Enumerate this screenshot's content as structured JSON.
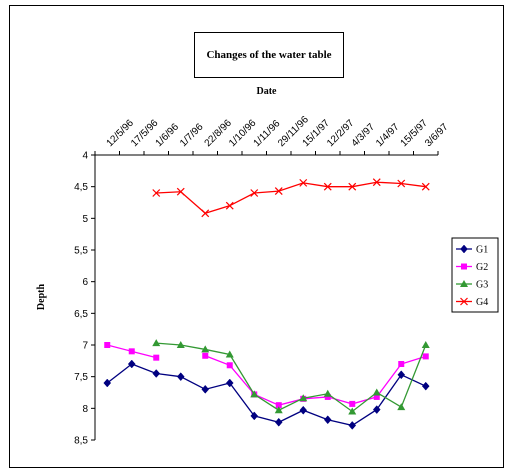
{
  "chart_data": {
    "type": "line",
    "title": "Changes of the water table",
    "xlabel": "Date",
    "ylabel": "Depth",
    "categories": [
      "12/5/96",
      "17/5/96",
      "1/6/96",
      "1/7/96",
      "22/8/96",
      "1/10/96",
      "1/11/96",
      "29/11/96",
      "15/1/97",
      "12/2/97",
      "4/3/97",
      "1/4/97",
      "15/5/97",
      "3/6/97"
    ],
    "yticks": [
      "4",
      "4,5",
      "5",
      "5,5",
      "6",
      "6,5",
      "7",
      "7,5",
      "8",
      "8,5"
    ],
    "ylim": [
      4,
      8.5
    ],
    "y_inverted": true,
    "x_axis_position": "top",
    "grid": false,
    "legend_position": "right",
    "series": [
      {
        "name": "G1",
        "color": "#000080",
        "marker": "diamond",
        "values": [
          7.6,
          7.3,
          7.45,
          7.5,
          7.7,
          7.6,
          8.12,
          8.22,
          8.03,
          8.18,
          8.27,
          8.02,
          7.47,
          7.65
        ]
      },
      {
        "name": "G2",
        "color": "#ff00ff",
        "marker": "square",
        "values": [
          7.0,
          7.1,
          7.2,
          null,
          7.17,
          7.32,
          7.78,
          7.95,
          7.85,
          7.82,
          7.93,
          7.82,
          7.3,
          7.18
        ]
      },
      {
        "name": "G3",
        "color": "#339933",
        "marker": "triangle",
        "values": [
          null,
          null,
          6.97,
          7.0,
          7.07,
          7.15,
          7.78,
          8.03,
          7.84,
          7.77,
          8.05,
          7.75,
          7.98,
          7.0
        ]
      },
      {
        "name": "G4",
        "color": "#ff0000",
        "marker": "x",
        "values": [
          null,
          null,
          4.6,
          4.58,
          4.92,
          4.8,
          4.6,
          4.57,
          4.44,
          4.5,
          4.5,
          4.43,
          4.45,
          4.5
        ]
      }
    ]
  }
}
